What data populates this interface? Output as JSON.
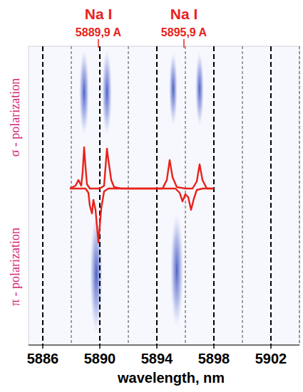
{
  "chart_data": {
    "type": "line",
    "xlabel": "wavelength, nm",
    "xlim": [
      5885,
      5904
    ],
    "xticks": [
      5886,
      5890,
      5894,
      5898,
      5902
    ],
    "ylim": [
      -11,
      10
    ],
    "grid": true,
    "tick_labels": "x",
    "y_labels": [
      "σ - polarization",
      "π - polarization"
    ],
    "annotations": [
      {
        "name": "Na I",
        "label": "5889,9 A",
        "x": 5889.9
      },
      {
        "name": "Na I",
        "label": "5895,9 A",
        "x": 5895.9
      }
    ],
    "spots": [
      {
        "x": 5888.9,
        "y": 6.75,
        "sx": 0.35,
        "sy": 3.0
      },
      {
        "x": 5890.5,
        "y": 6.75,
        "sx": 0.35,
        "sy": 3.0
      },
      {
        "x": 5895.15,
        "y": 7.0,
        "sx": 0.3,
        "sy": 2.6
      },
      {
        "x": 5897.0,
        "y": 7.0,
        "sx": 0.3,
        "sy": 2.6
      },
      {
        "x": 5889.75,
        "y": -6.0,
        "sx": 0.45,
        "sy": 4.2
      },
      {
        "x": 5895.4,
        "y": -5.75,
        "sx": 0.45,
        "sy": 4.0
      }
    ],
    "series": [
      {
        "name": "σ",
        "color": "#e8221b",
        "x": [
          5887.9,
          5888.3,
          5888.5,
          5888.7,
          5888.8,
          5888.9,
          5889.0,
          5889.1,
          5889.3,
          5889.6,
          5890.0,
          5890.3,
          5890.4,
          5890.5,
          5890.6,
          5890.8,
          5891.0,
          5891.5,
          5892.5,
          5893.5,
          5894.4,
          5894.7,
          5894.9,
          5895.1,
          5895.4,
          5896.0,
          5896.5,
          5896.8,
          5897.0,
          5897.2,
          5897.5,
          5898.0
        ],
        "values": [
          0,
          0.2,
          0.6,
          0.2,
          1.2,
          2.9,
          1.5,
          0.3,
          0,
          0,
          0,
          0.2,
          1.5,
          2.8,
          2.0,
          0.6,
          0.1,
          0,
          0,
          0,
          0,
          0.6,
          2.0,
          0.8,
          0.1,
          0,
          0,
          0.5,
          1.7,
          0.6,
          0,
          0
        ]
      },
      {
        "name": "π",
        "color": "#e8221b",
        "x": [
          5887.9,
          5888.5,
          5889.0,
          5889.2,
          5889.3,
          5889.45,
          5889.55,
          5889.7,
          5889.9,
          5890.1,
          5890.3,
          5890.6,
          5891.5,
          5893.0,
          5894.5,
          5895.3,
          5895.6,
          5895.8,
          5896.0,
          5896.2,
          5896.4,
          5896.6,
          5896.8,
          5897.2,
          5898.0
        ],
        "values": [
          0,
          0,
          0,
          -0.3,
          -1.2,
          -1.75,
          -0.8,
          -1.5,
          -3.8,
          -1.4,
          -0.2,
          0,
          0,
          0,
          0,
          0,
          -0.3,
          -0.9,
          -0.4,
          -0.6,
          -1.5,
          -0.7,
          -0.1,
          0,
          0
        ]
      }
    ]
  }
}
